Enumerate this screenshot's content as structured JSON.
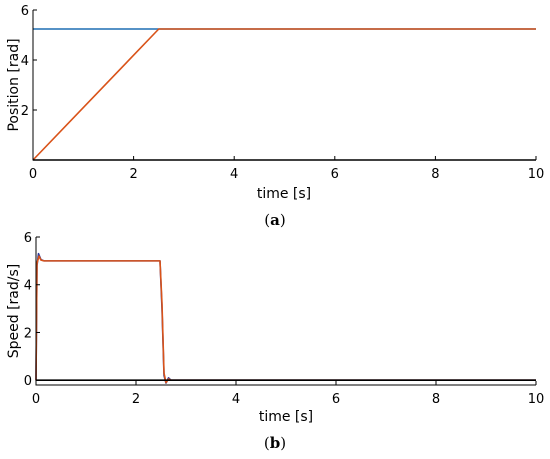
{
  "chart_data": [
    {
      "type": "line",
      "caption_letter": "a",
      "xlabel": "time [s]",
      "ylabel": "Position [rad]",
      "xlim": [
        0,
        10
      ],
      "ylim": [
        0,
        6
      ],
      "xticks": [
        0,
        2,
        4,
        6,
        8,
        10
      ],
      "yticks": [
        2,
        4,
        6
      ],
      "grid": false,
      "series": [
        {
          "color": "#1f6fb4",
          "x": [
            0,
            2.5,
            10
          ],
          "y": [
            5.24,
            5.24,
            5.24
          ]
        },
        {
          "color": "#d95319",
          "x": [
            0,
            2.5,
            10
          ],
          "y": [
            0,
            5.24,
            5.24
          ]
        },
        {
          "color": "#000000",
          "x": [
            0,
            10
          ],
          "y": [
            0,
            0
          ]
        }
      ]
    },
    {
      "type": "line",
      "caption_letter": "b",
      "xlabel": "time [s]",
      "ylabel": "Speed [rad/s]",
      "xlim": [
        0,
        10
      ],
      "ylim": [
        -0.2,
        6
      ],
      "xticks": [
        0,
        2,
        4,
        6,
        8,
        10
      ],
      "yticks": [
        0,
        2,
        4,
        6
      ],
      "grid": false,
      "series": [
        {
          "color": "#2b3a9e",
          "x": [
            0,
            0.02,
            0.05,
            0.1,
            0.16,
            2.48,
            2.52,
            2.56,
            2.6,
            2.65,
            2.7,
            10
          ],
          "y": [
            0,
            4.8,
            5.3,
            5.05,
            5.0,
            5.0,
            3.0,
            0.2,
            -0.12,
            0.1,
            0,
            0
          ]
        },
        {
          "color": "#d95319",
          "x": [
            0,
            0.02,
            0.06,
            0.1,
            0.16,
            2.48,
            2.52,
            2.56,
            2.6,
            2.65,
            2.7,
            10
          ],
          "y": [
            0,
            4.9,
            5.2,
            5.03,
            5.0,
            5.0,
            3.2,
            0.3,
            -0.1,
            0.05,
            0,
            0
          ]
        },
        {
          "color": "#000000",
          "x": [
            0,
            10
          ],
          "y": [
            0,
            0
          ]
        }
      ]
    }
  ]
}
